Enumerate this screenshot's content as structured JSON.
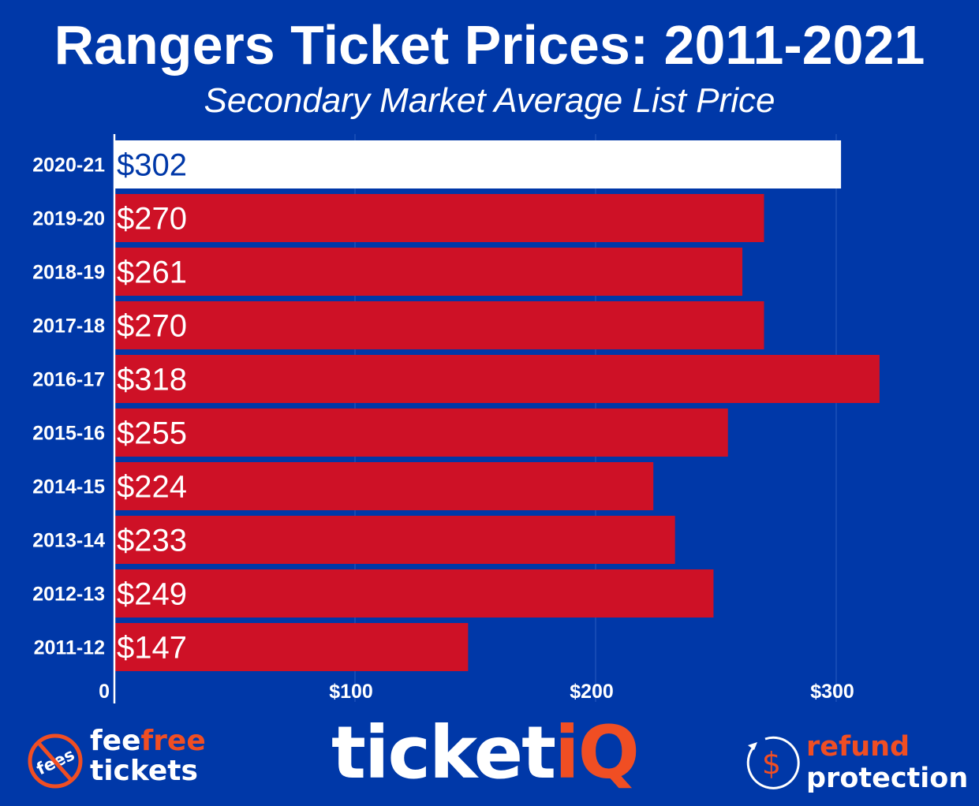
{
  "chart_data": {
    "type": "bar",
    "orientation": "horizontal",
    "title": "Rangers Ticket Prices: 2011-2021",
    "subtitle": "Secondary Market Average List Price",
    "categories": [
      "2020-21",
      "2019-20",
      "2018-19",
      "2017-18",
      "2016-17",
      "2015-16",
      "2014-15",
      "2013-14",
      "2012-13",
      "2011-12"
    ],
    "values": [
      302,
      270,
      261,
      270,
      318,
      255,
      224,
      233,
      249,
      147
    ],
    "data_labels": [
      "$302",
      "$270",
      "$261",
      "$270",
      "$318",
      "$255",
      "$224",
      "$233",
      "$249",
      "$147"
    ],
    "xlim": [
      0,
      350
    ],
    "x_ticks": [
      0,
      100,
      200,
      300
    ],
    "x_tick_labels": [
      "0",
      "$100",
      "$200",
      "$300"
    ],
    "grid": true,
    "colors": {
      "background": "#0038a8",
      "highlight_bar": "#ffffff",
      "bar": "#ce1126",
      "highlight_label": "#0038a8",
      "label": "#ffffff"
    }
  },
  "footer": {
    "feefree": {
      "badge": "fees",
      "word1": "fee",
      "word2": "free",
      "word3": "tickets"
    },
    "brand": {
      "main": "ticket",
      "accent": "iQ"
    },
    "refund": {
      "icon": "dollar-refund-icon",
      "word1": "refund",
      "word2": "protection"
    },
    "accent_color": "#f04e23"
  }
}
